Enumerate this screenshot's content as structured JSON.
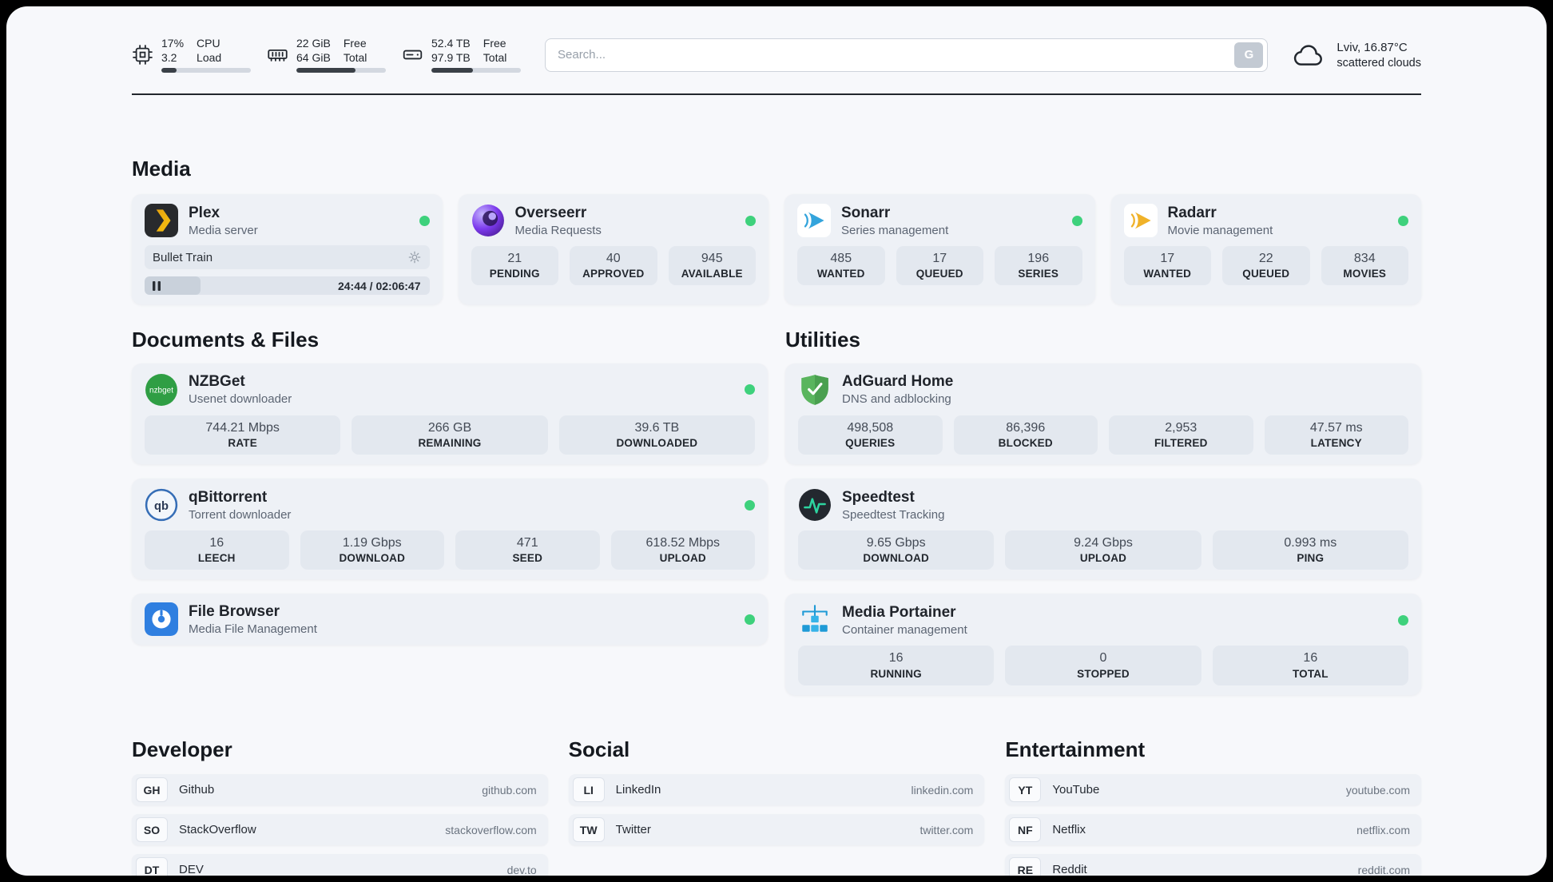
{
  "colors": {
    "status_online": "#3ed17c",
    "header_progress_fill": "#3a4047",
    "card_bg": "#eef1f6",
    "stat_bg": "#e3e8ef"
  },
  "header": {
    "metrics": [
      {
        "icon": "cpu-icon",
        "top_left": "17%",
        "bottom_left": "3.2",
        "top_right": "CPU",
        "bottom_right": "Load",
        "progress_pct": 17
      },
      {
        "icon": "ram-icon",
        "top_left": "22 GiB",
        "bottom_left": "64 GiB",
        "top_right": "Free",
        "bottom_right": "Total",
        "progress_pct": 66
      },
      {
        "icon": "disk-icon",
        "top_left": "52.4 TB",
        "bottom_left": "97.9 TB",
        "top_right": "Free",
        "bottom_right": "Total",
        "progress_pct": 46
      }
    ],
    "search": {
      "placeholder": "Search...",
      "engine_button": "G"
    },
    "weather": {
      "location": "Lviv, 16.87°C",
      "condition": "scattered clouds"
    }
  },
  "sections": {
    "media": "Media",
    "documents": "Documents & Files",
    "utilities": "Utilities",
    "developer": "Developer",
    "social": "Social",
    "entertainment": "Entertainment"
  },
  "media": {
    "plex": {
      "title": "Plex",
      "subtitle": "Media server",
      "now_playing": {
        "title": "Bullet Train",
        "time": "24:44 / 02:06:47",
        "progress_pct": 19.5
      }
    },
    "overseerr": {
      "title": "Overseerr",
      "subtitle": "Media Requests",
      "stats": [
        {
          "value": "21",
          "label": "PENDING"
        },
        {
          "value": "40",
          "label": "APPROVED"
        },
        {
          "value": "945",
          "label": "AVAILABLE"
        }
      ]
    },
    "sonarr": {
      "title": "Sonarr",
      "subtitle": "Series management",
      "stats": [
        {
          "value": "485",
          "label": "WANTED"
        },
        {
          "value": "17",
          "label": "QUEUED"
        },
        {
          "value": "196",
          "label": "SERIES"
        }
      ]
    },
    "radarr": {
      "title": "Radarr",
      "subtitle": "Movie management",
      "stats": [
        {
          "value": "17",
          "label": "WANTED"
        },
        {
          "value": "22",
          "label": "QUEUED"
        },
        {
          "value": "834",
          "label": "MOVIES"
        }
      ]
    }
  },
  "documents": {
    "nzbget": {
      "title": "NZBGet",
      "subtitle": "Usenet downloader",
      "stats": [
        {
          "value": "744.21 Mbps",
          "label": "RATE"
        },
        {
          "value": "266 GB",
          "label": "REMAINING"
        },
        {
          "value": "39.6 TB",
          "label": "DOWNLOADED"
        }
      ]
    },
    "qbittorrent": {
      "title": "qBittorrent",
      "subtitle": "Torrent downloader",
      "stats": [
        {
          "value": "16",
          "label": "LEECH"
        },
        {
          "value": "1.19 Gbps",
          "label": "DOWNLOAD"
        },
        {
          "value": "471",
          "label": "SEED"
        },
        {
          "value": "618.52 Mbps",
          "label": "UPLOAD"
        }
      ]
    },
    "filebrowser": {
      "title": "File Browser",
      "subtitle": "Media File Management"
    }
  },
  "utilities": {
    "adguard": {
      "title": "AdGuard Home",
      "subtitle": "DNS and adblocking",
      "stats": [
        {
          "value": "498,508",
          "label": "QUERIES"
        },
        {
          "value": "86,396",
          "label": "BLOCKED"
        },
        {
          "value": "2,953",
          "label": "FILTERED"
        },
        {
          "value": "47.57 ms",
          "label": "LATENCY"
        }
      ]
    },
    "speedtest": {
      "title": "Speedtest",
      "subtitle": "Speedtest Tracking",
      "stats": [
        {
          "value": "9.65 Gbps",
          "label": "DOWNLOAD"
        },
        {
          "value": "9.24 Gbps",
          "label": "UPLOAD"
        },
        {
          "value": "0.993 ms",
          "label": "PING"
        }
      ]
    },
    "portainer": {
      "title": "Media Portainer",
      "subtitle": "Container management",
      "stats": [
        {
          "value": "16",
          "label": "RUNNING"
        },
        {
          "value": "0",
          "label": "STOPPED"
        },
        {
          "value": "16",
          "label": "TOTAL"
        }
      ]
    }
  },
  "bookmarks": {
    "developer": [
      {
        "abbr": "GH",
        "name": "Github",
        "url": "github.com"
      },
      {
        "abbr": "SO",
        "name": "StackOverflow",
        "url": "stackoverflow.com"
      },
      {
        "abbr": "DT",
        "name": "DEV",
        "url": "dev.to"
      }
    ],
    "social": [
      {
        "abbr": "LI",
        "name": "LinkedIn",
        "url": "linkedin.com"
      },
      {
        "abbr": "TW",
        "name": "Twitter",
        "url": "twitter.com"
      }
    ],
    "entertainment": [
      {
        "abbr": "YT",
        "name": "YouTube",
        "url": "youtube.com"
      },
      {
        "abbr": "NF",
        "name": "Netflix",
        "url": "netflix.com"
      },
      {
        "abbr": "RE",
        "name": "Reddit",
        "url": "reddit.com"
      }
    ]
  }
}
